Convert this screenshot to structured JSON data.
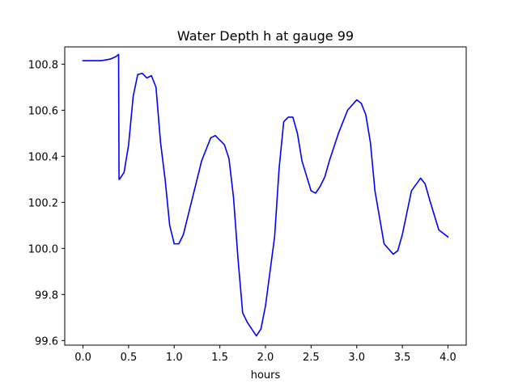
{
  "chart_data": {
    "type": "line",
    "title": "Water Depth h at gauge 99",
    "xlabel": "hours",
    "ylabel": "",
    "xlim": [
      -0.2,
      4.2
    ],
    "ylim": [
      99.58,
      100.875
    ],
    "xticks": [
      0.0,
      0.5,
      1.0,
      1.5,
      2.0,
      2.5,
      3.0,
      3.5,
      4.0
    ],
    "xtick_labels": [
      "0.0",
      "0.5",
      "1.0",
      "1.5",
      "2.0",
      "2.5",
      "3.0",
      "3.5",
      "4.0"
    ],
    "yticks": [
      99.6,
      99.8,
      100.0,
      100.2,
      100.4,
      100.6,
      100.8
    ],
    "ytick_labels": [
      "99.6",
      "99.8",
      "100.0",
      "100.2",
      "100.4",
      "100.6",
      "100.8"
    ],
    "grid": false,
    "legend": "none",
    "series": [
      {
        "color": "#0000ff",
        "x": [
          0.0,
          0.1,
          0.2,
          0.3,
          0.36,
          0.39,
          0.395,
          0.4,
          0.45,
          0.5,
          0.55,
          0.6,
          0.65,
          0.7,
          0.75,
          0.8,
          0.85,
          0.9,
          0.95,
          1.0,
          1.05,
          1.1,
          1.2,
          1.3,
          1.4,
          1.45,
          1.5,
          1.55,
          1.6,
          1.65,
          1.7,
          1.75,
          1.8,
          1.85,
          1.9,
          1.95,
          2.0,
          2.1,
          2.15,
          2.2,
          2.25,
          2.3,
          2.35,
          2.4,
          2.5,
          2.55,
          2.6,
          2.65,
          2.7,
          2.8,
          2.9,
          3.0,
          3.05,
          3.1,
          3.15,
          3.2,
          3.3,
          3.4,
          3.45,
          3.5,
          3.6,
          3.7,
          3.75,
          3.8,
          3.9,
          4.0
        ],
        "y": [
          100.815,
          100.815,
          100.815,
          100.822,
          100.833,
          100.842,
          100.3,
          100.3,
          100.33,
          100.45,
          100.66,
          100.755,
          100.76,
          100.74,
          100.75,
          100.7,
          100.46,
          100.3,
          100.1,
          100.02,
          100.02,
          100.06,
          100.22,
          100.38,
          100.48,
          100.49,
          100.47,
          100.45,
          100.39,
          100.22,
          99.95,
          99.72,
          99.68,
          99.65,
          99.62,
          99.65,
          99.75,
          100.05,
          100.35,
          100.55,
          100.57,
          100.57,
          100.5,
          100.38,
          100.25,
          100.24,
          100.27,
          100.31,
          100.38,
          100.5,
          100.6,
          100.645,
          100.63,
          100.58,
          100.46,
          100.25,
          100.02,
          99.975,
          99.99,
          100.06,
          100.25,
          100.305,
          100.28,
          100.21,
          100.08,
          100.05
        ]
      }
    ]
  }
}
